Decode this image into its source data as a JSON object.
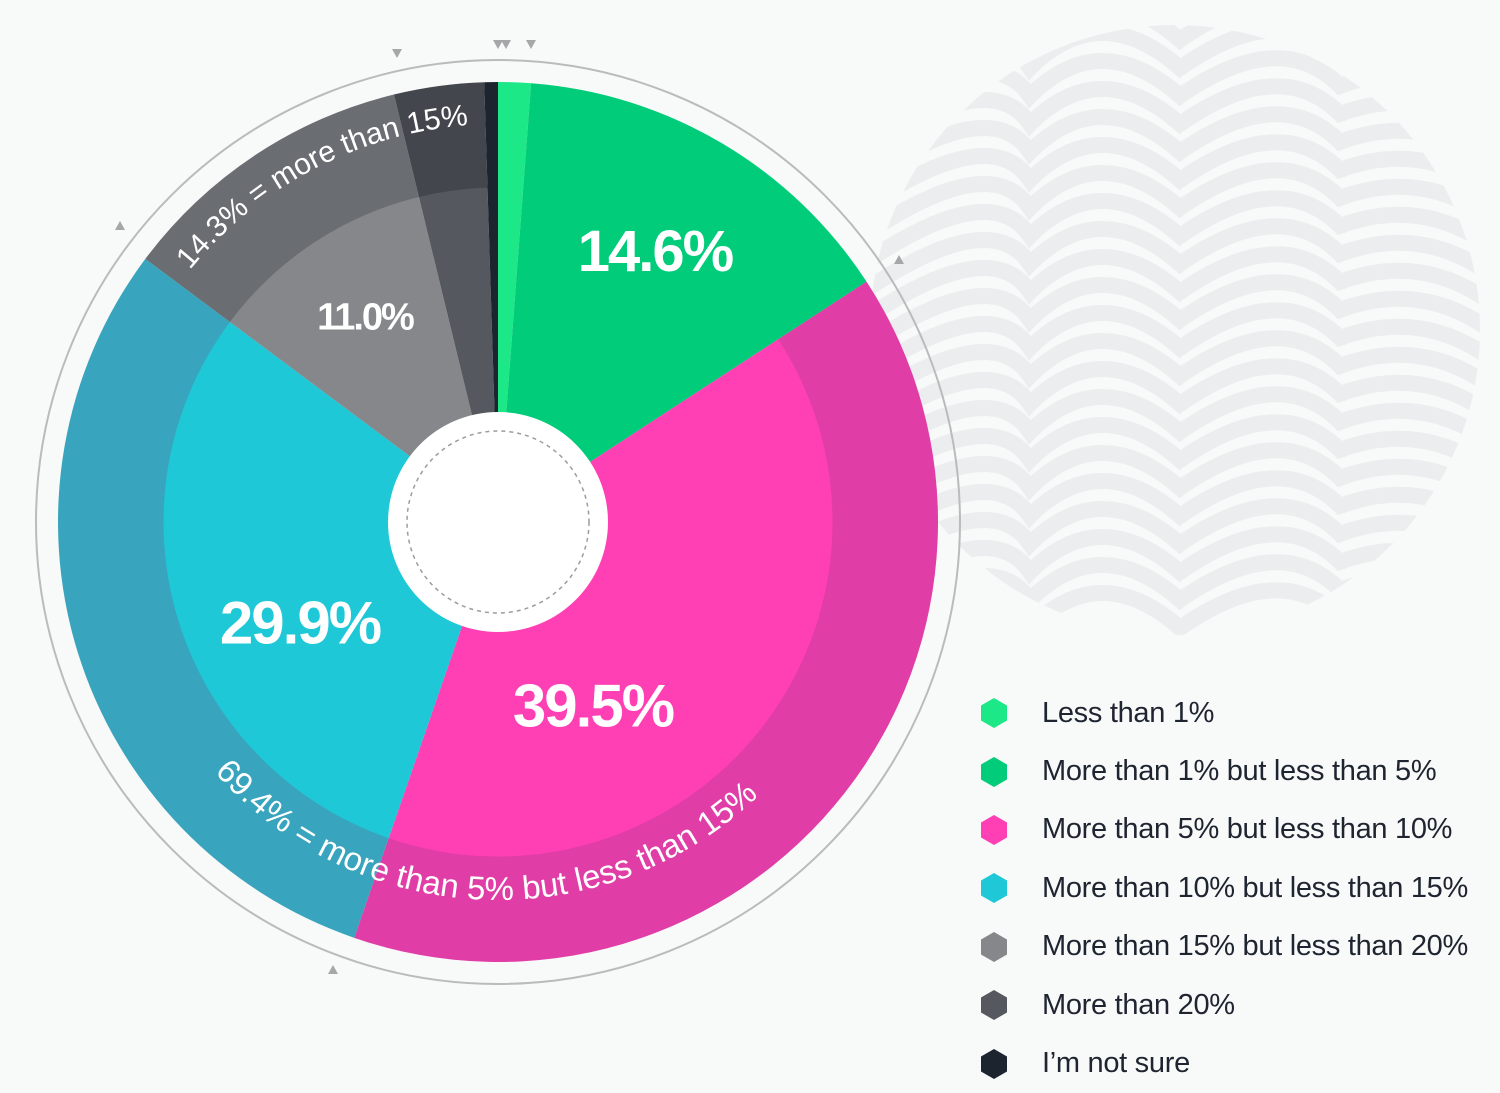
{
  "chart_data": {
    "type": "pie",
    "variant": "donut",
    "title": "",
    "categories": [
      "Less than 1%",
      "More than 1% but less than 5%",
      "More than 5% but less than 10%",
      "More than 10% but less than 15%",
      "More than 15% but less than 20%",
      "More than 20%",
      "I’m not sure"
    ],
    "values": [
      1.2,
      14.6,
      39.5,
      29.9,
      11.0,
      3.3,
      0.5
    ],
    "colors": [
      "#1de887",
      "#00cc7a",
      "#ff40b4",
      "#1ec8d6",
      "#85878b",
      "#55585f",
      "#1c2430"
    ],
    "outer_colors": [
      "#1de887",
      "#00cc7a",
      "#e03da6",
      "#38a4bd",
      "#6a6d72",
      "#43464c",
      "#1c2430"
    ],
    "data_labels": [
      {
        "category_index": 1,
        "text": "14.6%"
      },
      {
        "category_index": 2,
        "text": "39.5%"
      },
      {
        "category_index": 3,
        "text": "29.9%"
      },
      {
        "category_index": 4,
        "text": "11.0%"
      }
    ],
    "group_annotations": [
      {
        "text": "69.4% = more than 5% but less than 15%",
        "categories": [
          2,
          3
        ]
      },
      {
        "text": "14.3% = more than 15%",
        "categories": [
          4,
          5
        ]
      }
    ],
    "legend_placement": "bottom-right",
    "start_angle": "top, clockwise"
  }
}
